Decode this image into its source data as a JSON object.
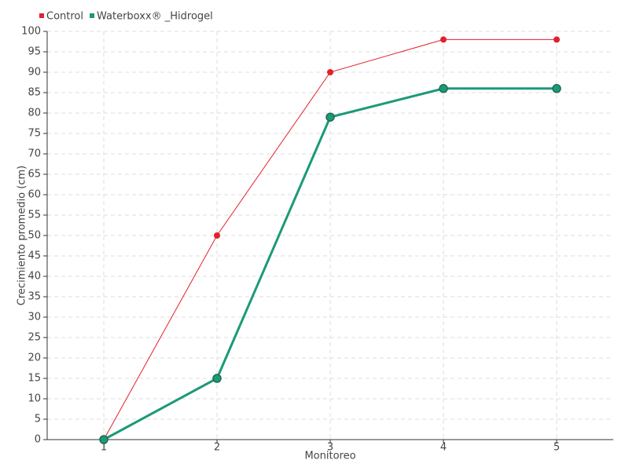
{
  "chart_data": {
    "type": "line",
    "x_label": "Monitoreo",
    "y_label": "Crecimiento promedio (cm)",
    "categories": [
      "1",
      "2",
      "3",
      "4",
      "5"
    ],
    "series": [
      {
        "name": "Control",
        "color": "#e3202b",
        "values": [
          0,
          50,
          90,
          98,
          98
        ]
      },
      {
        "name": "Waterboxx® _Hidrogel",
        "color": "#1b9a78",
        "values": [
          0,
          15,
          79,
          86,
          86
        ]
      }
    ],
    "ylim": [
      0,
      100
    ],
    "yticks": [
      0,
      5,
      10,
      15,
      20,
      25,
      30,
      35,
      40,
      45,
      50,
      55,
      60,
      65,
      70,
      75,
      80,
      85,
      90,
      95,
      100
    ],
    "grid": true,
    "legend": "top-left"
  }
}
